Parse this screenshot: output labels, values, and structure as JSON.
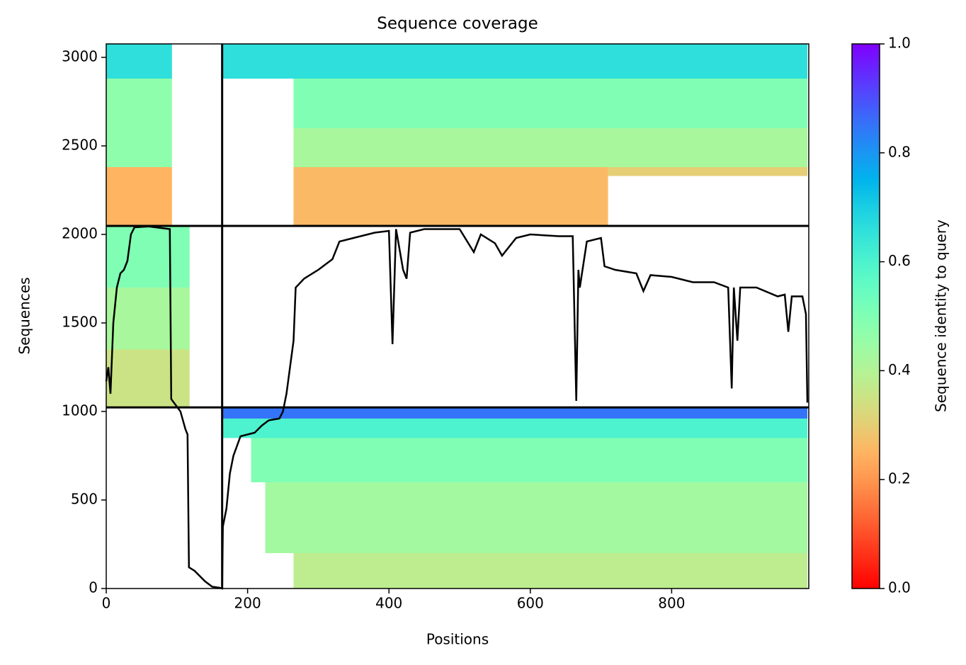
{
  "chart_data": {
    "type": "heatmap",
    "title": "Sequence coverage",
    "x_label": "Positions",
    "y_label": "Sequences",
    "colorbar_label": "Sequence identity to query",
    "colormap": "rainbow_r",
    "xlim": [
      0,
      994
    ],
    "ylim": [
      0,
      3076
    ],
    "xticks": [
      0,
      200,
      400,
      600,
      800
    ],
    "yticks": [
      0,
      500,
      1000,
      1500,
      2000,
      2500,
      3000
    ],
    "clim": [
      0,
      1
    ],
    "cticks": [
      {
        "value": 0,
        "label": "0.0"
      },
      {
        "value": 0.2,
        "label": "0.2"
      },
      {
        "value": 0.4,
        "label": "0.4"
      },
      {
        "value": 0.6,
        "label": "0.6"
      },
      {
        "value": 0.8,
        "label": "0.8"
      },
      {
        "value": 1,
        "label": "1.0"
      }
    ],
    "cells": [
      {
        "x": [
          0,
          93
        ],
        "y": [
          2880,
          3076
        ],
        "identity": 0.66
      },
      {
        "x": [
          165,
          992
        ],
        "y": [
          2880,
          3076
        ],
        "identity": 0.66
      },
      {
        "x": [
          0,
          93
        ],
        "y": [
          2380,
          2880
        ],
        "identity": 0.47
      },
      {
        "x": [
          265,
          992
        ],
        "y": [
          2600,
          2880
        ],
        "identity": 0.5
      },
      {
        "x": [
          265,
          992
        ],
        "y": [
          2380,
          2600
        ],
        "identity": 0.42
      },
      {
        "x": [
          0,
          93
        ],
        "y": [
          2048,
          2380
        ],
        "identity": 0.25
      },
      {
        "x": [
          265,
          710
        ],
        "y": [
          2048,
          2380
        ],
        "identity": 0.26
      },
      {
        "x": [
          710,
          992
        ],
        "y": [
          2330,
          2380
        ],
        "identity": 0.3
      },
      {
        "x": [
          0,
          118
        ],
        "y": [
          1700,
          2048
        ],
        "identity": 0.5
      },
      {
        "x": [
          0,
          118
        ],
        "y": [
          1350,
          1700
        ],
        "identity": 0.42
      },
      {
        "x": [
          0,
          118
        ],
        "y": [
          1023,
          1350
        ],
        "identity": 0.35
      },
      {
        "x": [
          165,
          992
        ],
        "y": [
          960,
          1023
        ],
        "identity": 0.85
      },
      {
        "x": [
          165,
          992
        ],
        "y": [
          850,
          960
        ],
        "identity": 0.6
      },
      {
        "x": [
          205,
          992
        ],
        "y": [
          600,
          850
        ],
        "identity": 0.5
      },
      {
        "x": [
          225,
          992
        ],
        "y": [
          200,
          600
        ],
        "identity": 0.43
      },
      {
        "x": [
          265,
          992
        ],
        "y": [
          0,
          200
        ],
        "identity": 0.38
      }
    ],
    "x_boundaries": [
      164
    ],
    "y_boundaries": [
      1023,
      2048
    ],
    "coverage": {
      "color": "#000000",
      "x": [
        0,
        3,
        6,
        10,
        15,
        20,
        25,
        30,
        35,
        40,
        60,
        90,
        92,
        105,
        112,
        115,
        117,
        125,
        140,
        150,
        160,
        164,
        165,
        170,
        175,
        180,
        190,
        200,
        210,
        220,
        230,
        245,
        250,
        255,
        260,
        265,
        268,
        280,
        300,
        320,
        330,
        350,
        380,
        400,
        405,
        410,
        420,
        425,
        430,
        450,
        500,
        520,
        530,
        550,
        560,
        580,
        600,
        640,
        660,
        665,
        668,
        670,
        680,
        700,
        705,
        720,
        750,
        760,
        770,
        800,
        830,
        860,
        880,
        885,
        888,
        893,
        897,
        920,
        950,
        960,
        965,
        970,
        985,
        990,
        992
      ],
      "y": [
        1170,
        1250,
        1100,
        1500,
        1700,
        1780,
        1800,
        1850,
        2000,
        2040,
        2045,
        2030,
        1070,
        1000,
        900,
        870,
        120,
        100,
        40,
        10,
        5,
        0,
        350,
        450,
        650,
        750,
        860,
        870,
        880,
        920,
        950,
        960,
        1000,
        1100,
        1250,
        1400,
        1700,
        1750,
        1800,
        1860,
        1960,
        1980,
        2010,
        2020,
        1380,
        2030,
        1800,
        1750,
        2010,
        2030,
        2030,
        1900,
        2000,
        1950,
        1880,
        1980,
        2000,
        1990,
        1990,
        1060,
        1800,
        1700,
        1960,
        1980,
        1820,
        1800,
        1780,
        1680,
        1770,
        1760,
        1730,
        1730,
        1700,
        1130,
        1700,
        1400,
        1700,
        1700,
        1650,
        1660,
        1450,
        1650,
        1650,
        1550,
        1050
      ]
    }
  }
}
